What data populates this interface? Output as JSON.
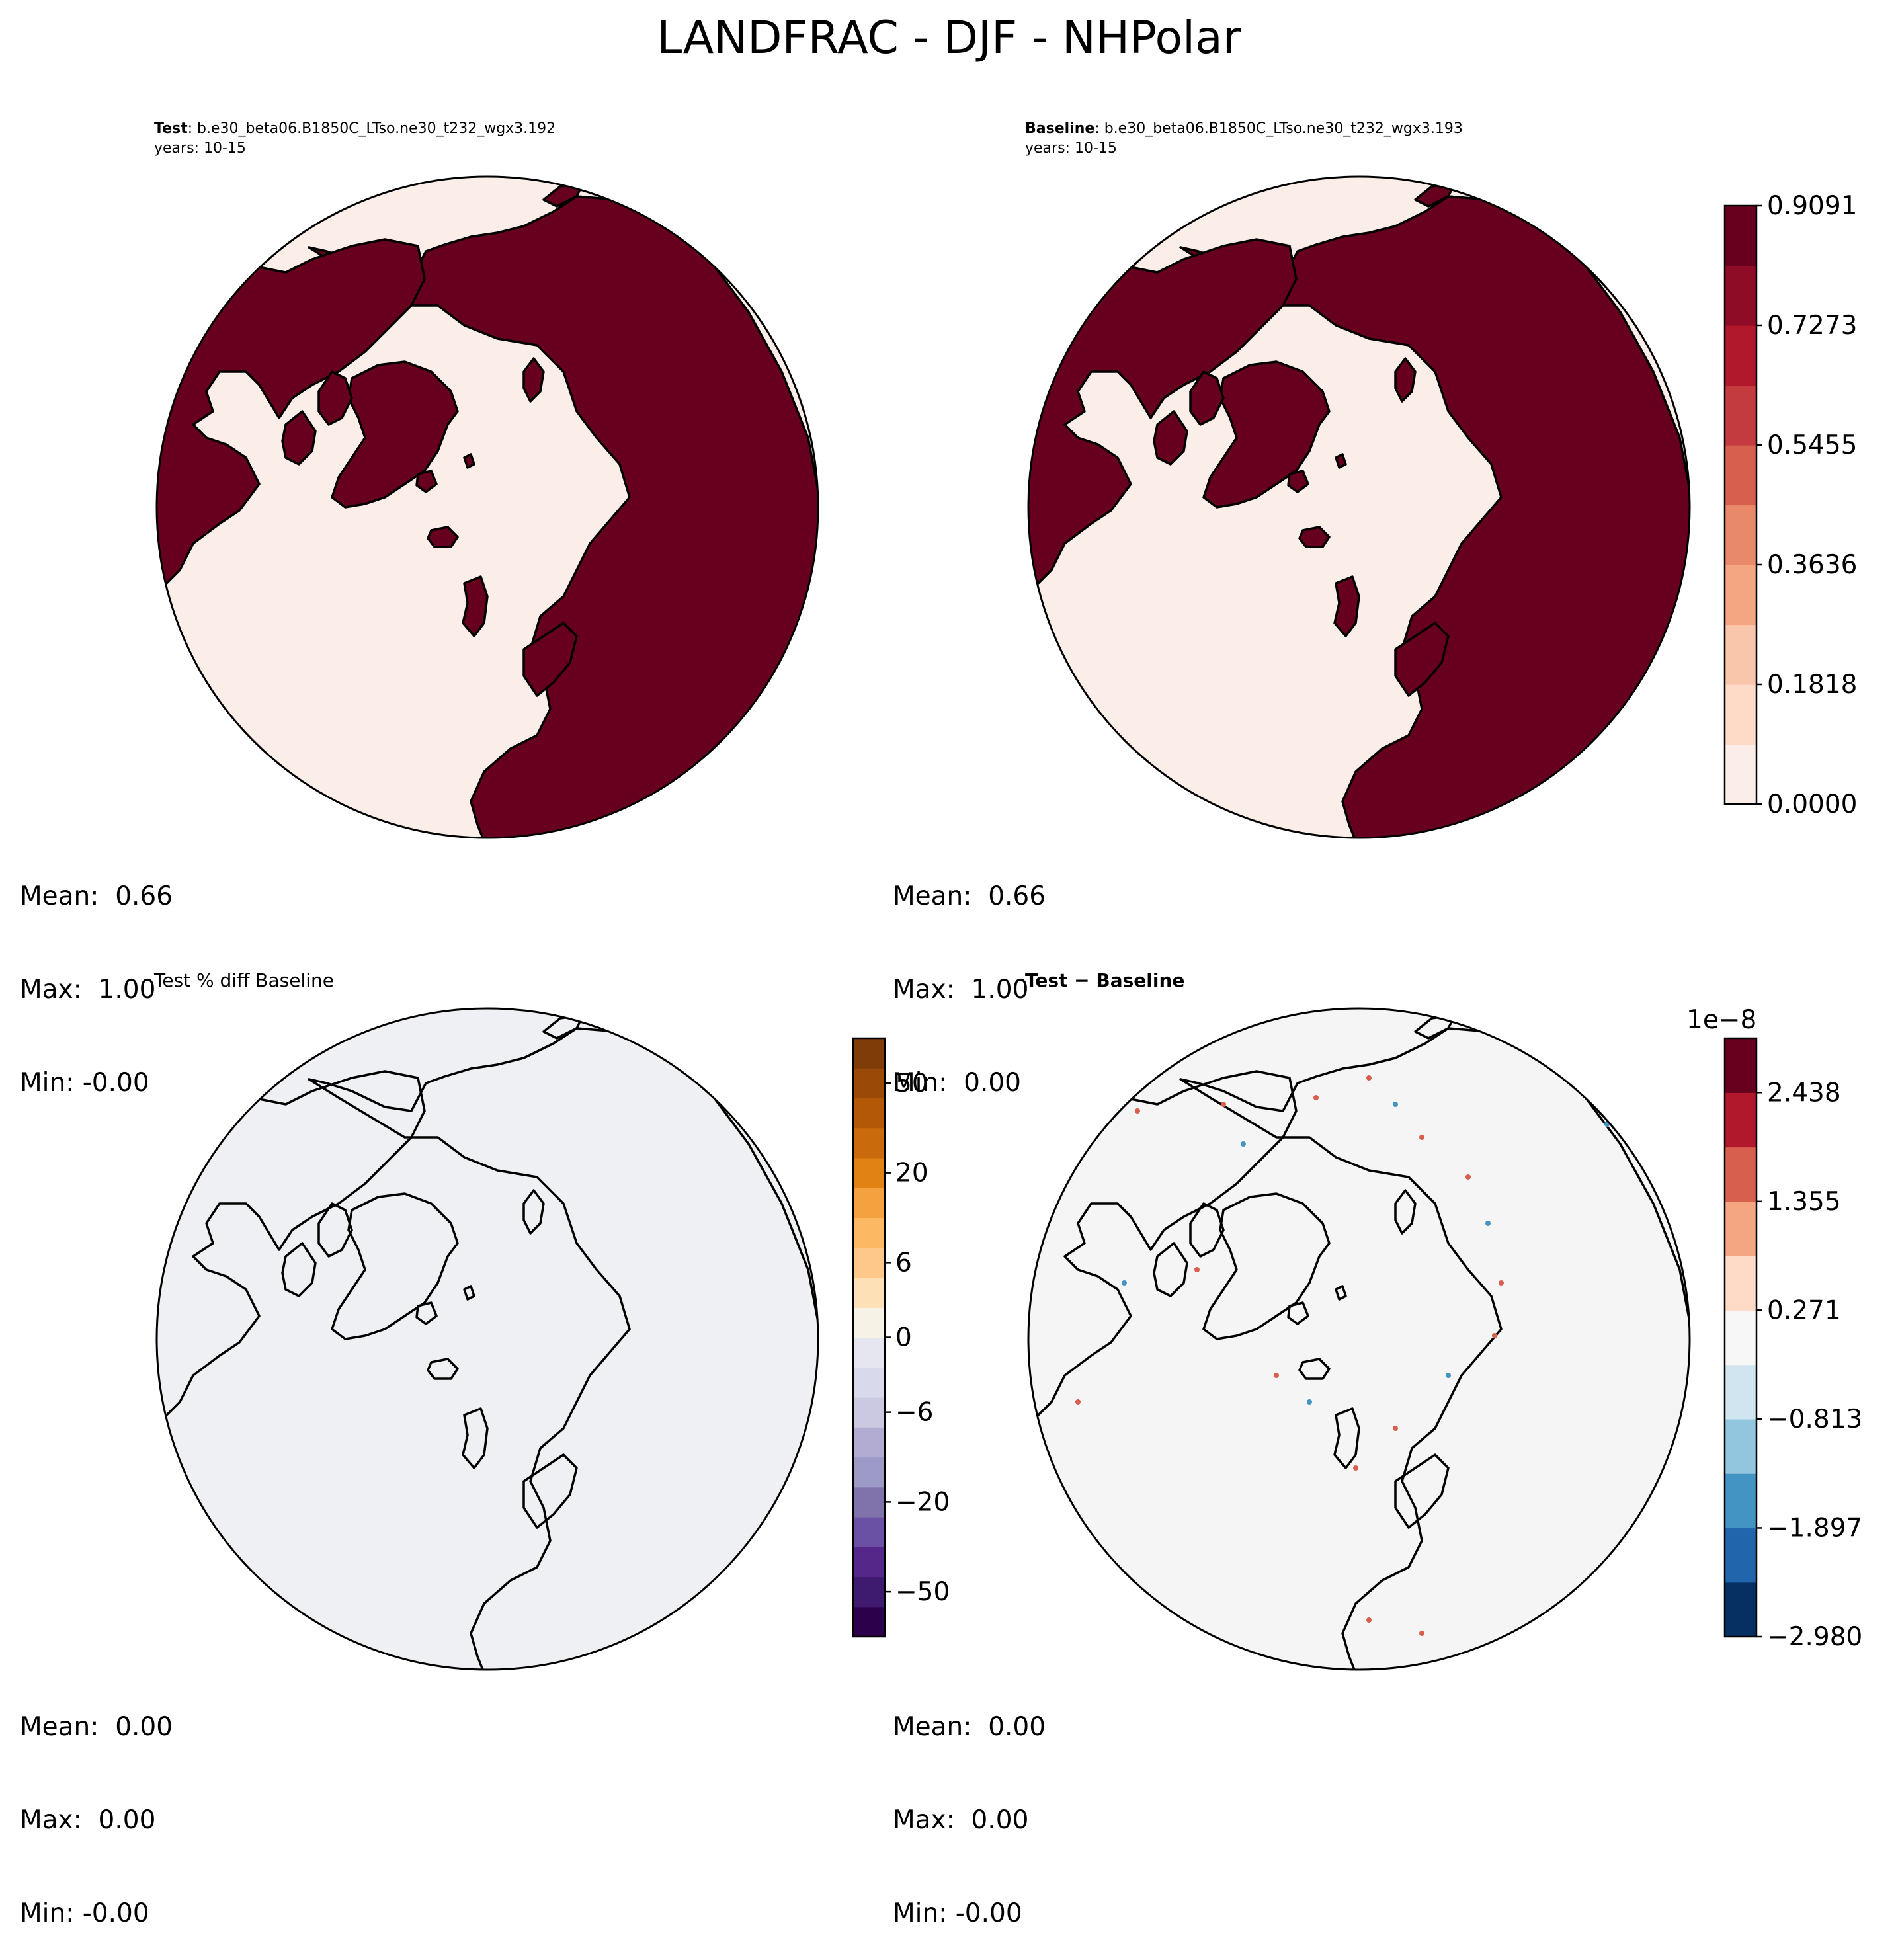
{
  "figure": {
    "title": "LANDFRAC - DJF - NHPolar"
  },
  "panels": [
    {
      "id": "test",
      "title_bold": "Test",
      "title_rest": ": b.e30_beta06.B1850C_LTso.ne30_t232_wgx3.192",
      "subtitle": "years: 10-15",
      "stats": {
        "mean": "Mean:  0.66",
        "max": "Max:  1.00",
        "min": "Min: -0.00"
      },
      "land_color": "#67001f",
      "ocean_color": "#fbeee9"
    },
    {
      "id": "baseline",
      "title_bold": "Baseline",
      "title_rest": ": b.e30_beta06.B1850C_LTso.ne30_t232_wgx3.193",
      "subtitle": "years: 10-15",
      "stats": {
        "mean": "Mean:  0.66",
        "max": "Max:  1.00",
        "min": "Min:  0.00"
      },
      "land_color": "#67001f",
      "ocean_color": "#fbeee9"
    },
    {
      "id": "pct_diff",
      "title_plain": "Test % diff Baseline",
      "stats": {
        "mean": "Mean:  0.00",
        "max": "Max:  0.00",
        "min": "Min: -0.00"
      },
      "field_color": "#eff0f3"
    },
    {
      "id": "diff",
      "title_bold": "Test − Baseline",
      "stats": {
        "mean": "Mean:  0.00",
        "max": "Max:  0.00",
        "min": "Min: -0.00"
      },
      "field_color": "#f5f5f5"
    }
  ],
  "colorbars": {
    "landfrac": {
      "colors": [
        "#fbeee9",
        "#fddbc7",
        "#f9c5ab",
        "#f4a582",
        "#e8896a",
        "#d6604d",
        "#c33b3e",
        "#b2182b",
        "#8e0c25",
        "#67001f"
      ],
      "ticks": [
        "0.0000",
        "0.1818",
        "0.3636",
        "0.5455",
        "0.7273",
        "0.9091"
      ]
    },
    "pct_diff": {
      "colors": [
        "#2d004b",
        "#3f1b70",
        "#542788",
        "#6a51a3",
        "#8073ac",
        "#9e9ac8",
        "#b2abd2",
        "#cbc9e2",
        "#d8daeb",
        "#e6e6f0",
        "#f7f2e6",
        "#fee0b6",
        "#fdc88a",
        "#fdb863",
        "#f4a23f",
        "#e08214",
        "#c96b0c",
        "#b35806",
        "#9a4a06",
        "#7f3b08"
      ],
      "ticks": [
        "−50",
        "−20",
        "−6",
        "0",
        "6",
        "20",
        "50"
      ]
    },
    "abs_diff": {
      "colors": [
        "#053061",
        "#2166ac",
        "#4393c3",
        "#92c5de",
        "#d1e5f0",
        "#f7f7f7",
        "#fddbc7",
        "#f4a582",
        "#d6604d",
        "#b2182b",
        "#67001f"
      ],
      "ticks": [
        "−2.980",
        "−1.897",
        "−0.813",
        "0.271",
        "1.355",
        "2.438"
      ],
      "offset_label": "1e−8"
    }
  }
}
